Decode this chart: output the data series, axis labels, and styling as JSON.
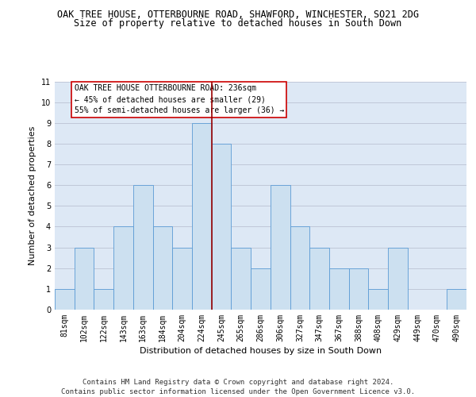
{
  "title_line1": "OAK TREE HOUSE, OTTERBOURNE ROAD, SHAWFORD, WINCHESTER, SO21 2DG",
  "title_line2": "Size of property relative to detached houses in South Down",
  "xlabel": "Distribution of detached houses by size in South Down",
  "ylabel": "Number of detached properties",
  "categories": [
    "81sqm",
    "102sqm",
    "122sqm",
    "143sqm",
    "163sqm",
    "184sqm",
    "204sqm",
    "224sqm",
    "245sqm",
    "265sqm",
    "286sqm",
    "306sqm",
    "327sqm",
    "347sqm",
    "367sqm",
    "388sqm",
    "408sqm",
    "429sqm",
    "449sqm",
    "470sqm",
    "490sqm"
  ],
  "values": [
    1,
    3,
    1,
    4,
    6,
    4,
    3,
    9,
    8,
    3,
    2,
    6,
    4,
    3,
    2,
    2,
    1,
    3,
    0,
    0,
    1
  ],
  "bar_color": "#cce0f0",
  "bar_edge_color": "#5b9bd5",
  "grid_color": "#c0c8d8",
  "background_color": "#dde8f5",
  "vline_x": 7.5,
  "vline_color": "#990000",
  "annotation_text": "OAK TREE HOUSE OTTERBOURNE ROAD: 236sqm\n← 45% of detached houses are smaller (29)\n55% of semi-detached houses are larger (36) →",
  "annotation_box_color": "#ffffff",
  "annotation_box_edge_color": "#cc0000",
  "ylim": [
    0,
    11
  ],
  "yticks": [
    0,
    1,
    2,
    3,
    4,
    5,
    6,
    7,
    8,
    9,
    10,
    11
  ],
  "footer_line1": "Contains HM Land Registry data © Crown copyright and database right 2024.",
  "footer_line2": "Contains public sector information licensed under the Open Government Licence v3.0.",
  "title_fontsize": 8.5,
  "subtitle_fontsize": 8.5,
  "axis_label_fontsize": 8,
  "tick_fontsize": 7,
  "annotation_fontsize": 7,
  "footer_fontsize": 6.5
}
